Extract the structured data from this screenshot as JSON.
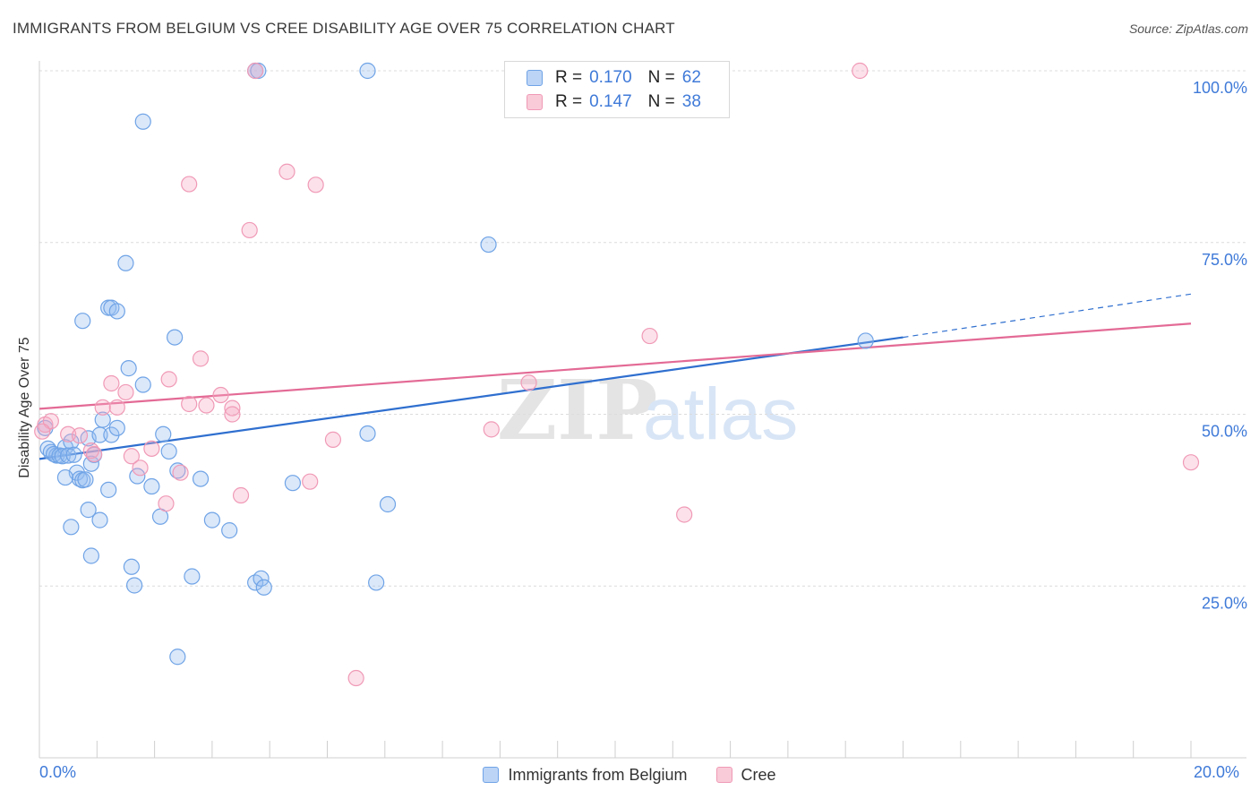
{
  "chart_data": {
    "type": "scatter",
    "title": "IMMIGRANTS FROM BELGIUM VS CREE DISABILITY AGE OVER 75 CORRELATION CHART",
    "source": "Source: ZipAtlas.com",
    "xlabel": "",
    "ylabel": "Disability Age Over 75",
    "xlim": [
      0,
      20
    ],
    "ylim": [
      0,
      100
    ],
    "x_tick_labels": [
      "0.0%",
      "20.0%"
    ],
    "y_ticks": [
      25,
      50,
      75,
      100
    ],
    "y_tick_labels": [
      "25.0%",
      "50.0%",
      "75.0%",
      "100.0%"
    ],
    "grid": true,
    "watermark": "ZIPatlas",
    "legend": {
      "placement": "top-center",
      "entries": [
        {
          "r_label": "R =",
          "r_value": "0.170",
          "n_label": "N =",
          "n_value": "62"
        },
        {
          "r_label": "R =",
          "r_value": "0.147",
          "n_label": "N =",
          "n_value": "38"
        }
      ]
    },
    "series": [
      {
        "name": "Immigrants from Belgium",
        "color": "#6fa3e6",
        "line_color": "#2f6fcf",
        "trend": {
          "x0": 0,
          "y0": 43.5,
          "x1": 15,
          "y1": 61.2,
          "dash_x1": 20,
          "dash_y1": 67.5
        },
        "points": [
          [
            0.15,
            45.0
          ],
          [
            0.2,
            44.5
          ],
          [
            0.3,
            44.0
          ],
          [
            0.25,
            44.2
          ],
          [
            0.35,
            44.0
          ],
          [
            0.45,
            45.2
          ],
          [
            0.4,
            43.9
          ],
          [
            0.5,
            44.0
          ],
          [
            0.55,
            46.0
          ],
          [
            0.6,
            44.1
          ],
          [
            0.65,
            41.5
          ],
          [
            0.7,
            40.6
          ],
          [
            0.75,
            40.4
          ],
          [
            0.8,
            40.5
          ],
          [
            0.85,
            46.5
          ],
          [
            0.9,
            42.8
          ],
          [
            0.95,
            44.1
          ],
          [
            1.05,
            47.0
          ],
          [
            1.1,
            49.2
          ],
          [
            1.25,
            47.0
          ],
          [
            1.2,
            39.0
          ],
          [
            0.45,
            40.8
          ],
          [
            0.55,
            33.6
          ],
          [
            0.85,
            36.1
          ],
          [
            1.05,
            34.6
          ],
          [
            0.9,
            29.4
          ],
          [
            1.6,
            27.8
          ],
          [
            1.65,
            25.1
          ],
          [
            0.75,
            63.6
          ],
          [
            1.2,
            65.5
          ],
          [
            1.25,
            65.5
          ],
          [
            1.35,
            65.0
          ],
          [
            1.5,
            72.0
          ],
          [
            1.55,
            56.7
          ],
          [
            1.8,
            54.3
          ],
          [
            1.7,
            41.0
          ],
          [
            1.95,
            39.5
          ],
          [
            2.1,
            35.1
          ],
          [
            2.15,
            47.1
          ],
          [
            2.25,
            44.6
          ],
          [
            2.4,
            41.8
          ],
          [
            2.35,
            61.2
          ],
          [
            2.8,
            40.6
          ],
          [
            3.0,
            34.6
          ],
          [
            3.3,
            33.1
          ],
          [
            2.65,
            26.4
          ],
          [
            2.4,
            14.7
          ],
          [
            3.75,
            25.5
          ],
          [
            3.85,
            26.1
          ],
          [
            3.9,
            24.8
          ],
          [
            4.4,
            40.0
          ],
          [
            1.8,
            92.6
          ],
          [
            3.75,
            100.0
          ],
          [
            3.8,
            100.0
          ],
          [
            5.7,
            100.0
          ],
          [
            5.7,
            47.2
          ],
          [
            6.05,
            36.9
          ],
          [
            5.85,
            25.5
          ],
          [
            7.8,
            74.7
          ],
          [
            14.35,
            60.7
          ],
          [
            0.1,
            48.0
          ],
          [
            1.35,
            48.0
          ]
        ]
      },
      {
        "name": "Cree",
        "color": "#f09ab6",
        "line_color": "#e36a95",
        "trend": {
          "x0": 0,
          "y0": 50.8,
          "x1": 20,
          "y1": 63.2
        },
        "points": [
          [
            0.1,
            48.5
          ],
          [
            0.2,
            49.0
          ],
          [
            0.5,
            47.1
          ],
          [
            0.7,
            46.9
          ],
          [
            0.9,
            44.7
          ],
          [
            0.95,
            44.2
          ],
          [
            1.1,
            51.0
          ],
          [
            1.25,
            54.5
          ],
          [
            1.35,
            51.0
          ],
          [
            1.5,
            53.2
          ],
          [
            1.6,
            43.9
          ],
          [
            1.75,
            42.2
          ],
          [
            1.95,
            45.0
          ],
          [
            2.2,
            37.0
          ],
          [
            2.25,
            55.1
          ],
          [
            2.6,
            51.5
          ],
          [
            2.8,
            58.1
          ],
          [
            2.9,
            51.3
          ],
          [
            3.15,
            52.8
          ],
          [
            3.35,
            50.9
          ],
          [
            3.35,
            50.0
          ],
          [
            2.45,
            41.5
          ],
          [
            3.5,
            38.2
          ],
          [
            2.6,
            83.5
          ],
          [
            3.65,
            76.8
          ],
          [
            4.3,
            85.3
          ],
          [
            4.8,
            83.4
          ],
          [
            3.75,
            100.0
          ],
          [
            4.7,
            40.2
          ],
          [
            5.1,
            46.3
          ],
          [
            5.5,
            11.6
          ],
          [
            7.85,
            47.8
          ],
          [
            8.5,
            54.6
          ],
          [
            10.6,
            61.4
          ],
          [
            11.2,
            35.4
          ],
          [
            14.25,
            100.0
          ],
          [
            20.0,
            43.0
          ],
          [
            0.05,
            47.5
          ]
        ]
      }
    ]
  }
}
